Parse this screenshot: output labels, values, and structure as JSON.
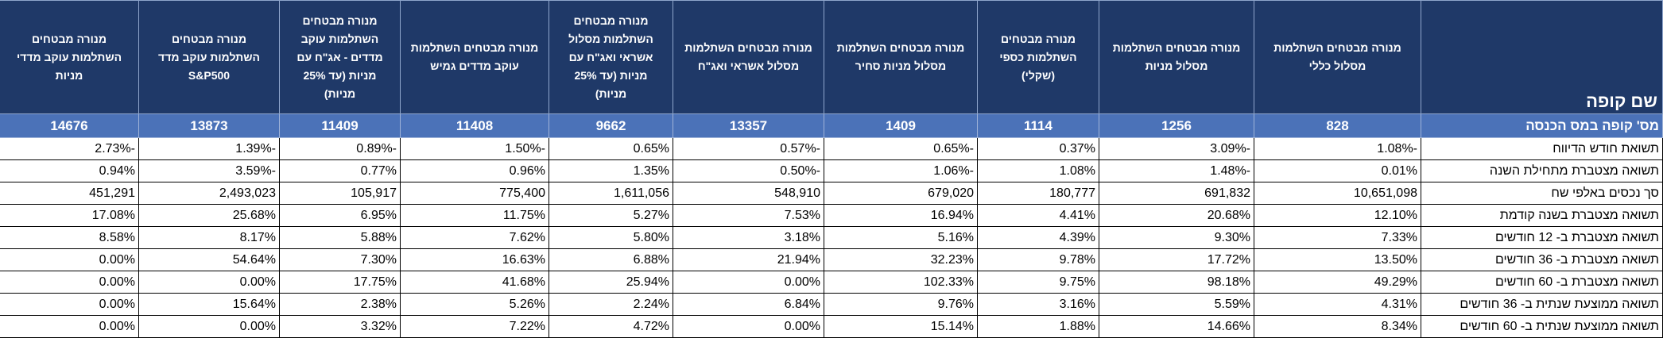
{
  "table": {
    "corner_title": "שם קופה",
    "fund_number_label": "מס' קופה במס הכנסה",
    "columns": [
      {
        "name": "מנורה מבטחים השתלמות מסלול כללי",
        "fund_number": 828
      },
      {
        "name": "מנורה מבטחים השתלמות מסלול מניות",
        "fund_number": 1256
      },
      {
        "name": "מנורה מבטחים השתלמות כספי (שקלי)",
        "fund_number": 1114
      },
      {
        "name": "מנורה מבטחים השתלמות מסלול מניות סחיר",
        "fund_number": 1409
      },
      {
        "name": "מנורה מבטחים השתלמות מסלול אשראי ואג\"ח",
        "fund_number": 13357
      },
      {
        "name": "מנורה מבטחים השתלמות מסלול אשראי ואג\"ח עם מניות (עד 25% מניות)",
        "fund_number": 9662
      },
      {
        "name": "מנורה מבטחים השתלמות עוקב מדדים גמיש",
        "fund_number": 11408
      },
      {
        "name": "מנורה מבטחים השתלמות עוקב מדדים - אג\"ח עם מניות (עד 25% מניות)",
        "fund_number": 11409
      },
      {
        "name": "מנורה מבטחים השתלמות עוקב מדד S&P500",
        "fund_number": 13873
      },
      {
        "name": "מנורה מבטחים השתלמות עוקב מדדי מניות",
        "fund_number": 14676
      }
    ],
    "rows": [
      {
        "label": "תשואת חודש הדיווח",
        "values": [
          "-1.08%",
          "-3.09%",
          "0.37%",
          "-0.65%",
          "-0.57%",
          "0.65%",
          "-1.50%",
          "-0.89%",
          "-1.39%",
          "-2.73%"
        ]
      },
      {
        "label": "תשואה מצטברת מתחילת השנה",
        "values": [
          "0.01%",
          "-1.48%",
          "1.08%",
          "-1.06%",
          "-0.50%",
          "1.35%",
          "0.96%",
          "0.77%",
          "-3.59%",
          "0.94%"
        ]
      },
      {
        "label": "סך נכסים באלפי שח",
        "values": [
          "10,651,098",
          "691,832",
          "180,777",
          "679,020",
          "548,910",
          "1,611,056",
          "775,400",
          "105,917",
          "2,493,023",
          "451,291"
        ]
      },
      {
        "label": "תשואה מצטברת בשנה קודמת",
        "values": [
          "12.10%",
          "20.68%",
          "4.41%",
          "16.94%",
          "7.53%",
          "5.27%",
          "11.75%",
          "6.95%",
          "25.68%",
          "17.08%"
        ]
      },
      {
        "label": "תשואה מצטברת ב- 12 חודשים",
        "values": [
          "7.33%",
          "9.30%",
          "4.39%",
          "5.16%",
          "3.18%",
          "5.80%",
          "7.62%",
          "5.88%",
          "8.17%",
          "8.58%"
        ]
      },
      {
        "label": "תשואה מצטברת ב- 36 חודשים",
        "values": [
          "13.50%",
          "17.72%",
          "9.78%",
          "32.23%",
          "21.94%",
          "6.88%",
          "16.63%",
          "7.30%",
          "54.64%",
          "0.00%"
        ]
      },
      {
        "label": "תשואה מצטברת ב- 60 חודשים",
        "values": [
          "49.29%",
          "98.18%",
          "9.75%",
          "102.33%",
          "0.00%",
          "25.94%",
          "41.68%",
          "17.75%",
          "0.00%",
          "0.00%"
        ]
      },
      {
        "label": "תשואה ממוצעת שנתית ב- 36 חודשים",
        "values": [
          "4.31%",
          "5.59%",
          "3.16%",
          "9.76%",
          "6.84%",
          "2.24%",
          "5.26%",
          "2.38%",
          "15.64%",
          "0.00%"
        ]
      },
      {
        "label": "תשואה ממוצעת שנתית ב- 60 חודשים",
        "values": [
          "8.34%",
          "14.66%",
          "1.88%",
          "15.14%",
          "0.00%",
          "4.72%",
          "7.22%",
          "3.32%",
          "0.00%",
          "0.00%"
        ]
      }
    ]
  }
}
